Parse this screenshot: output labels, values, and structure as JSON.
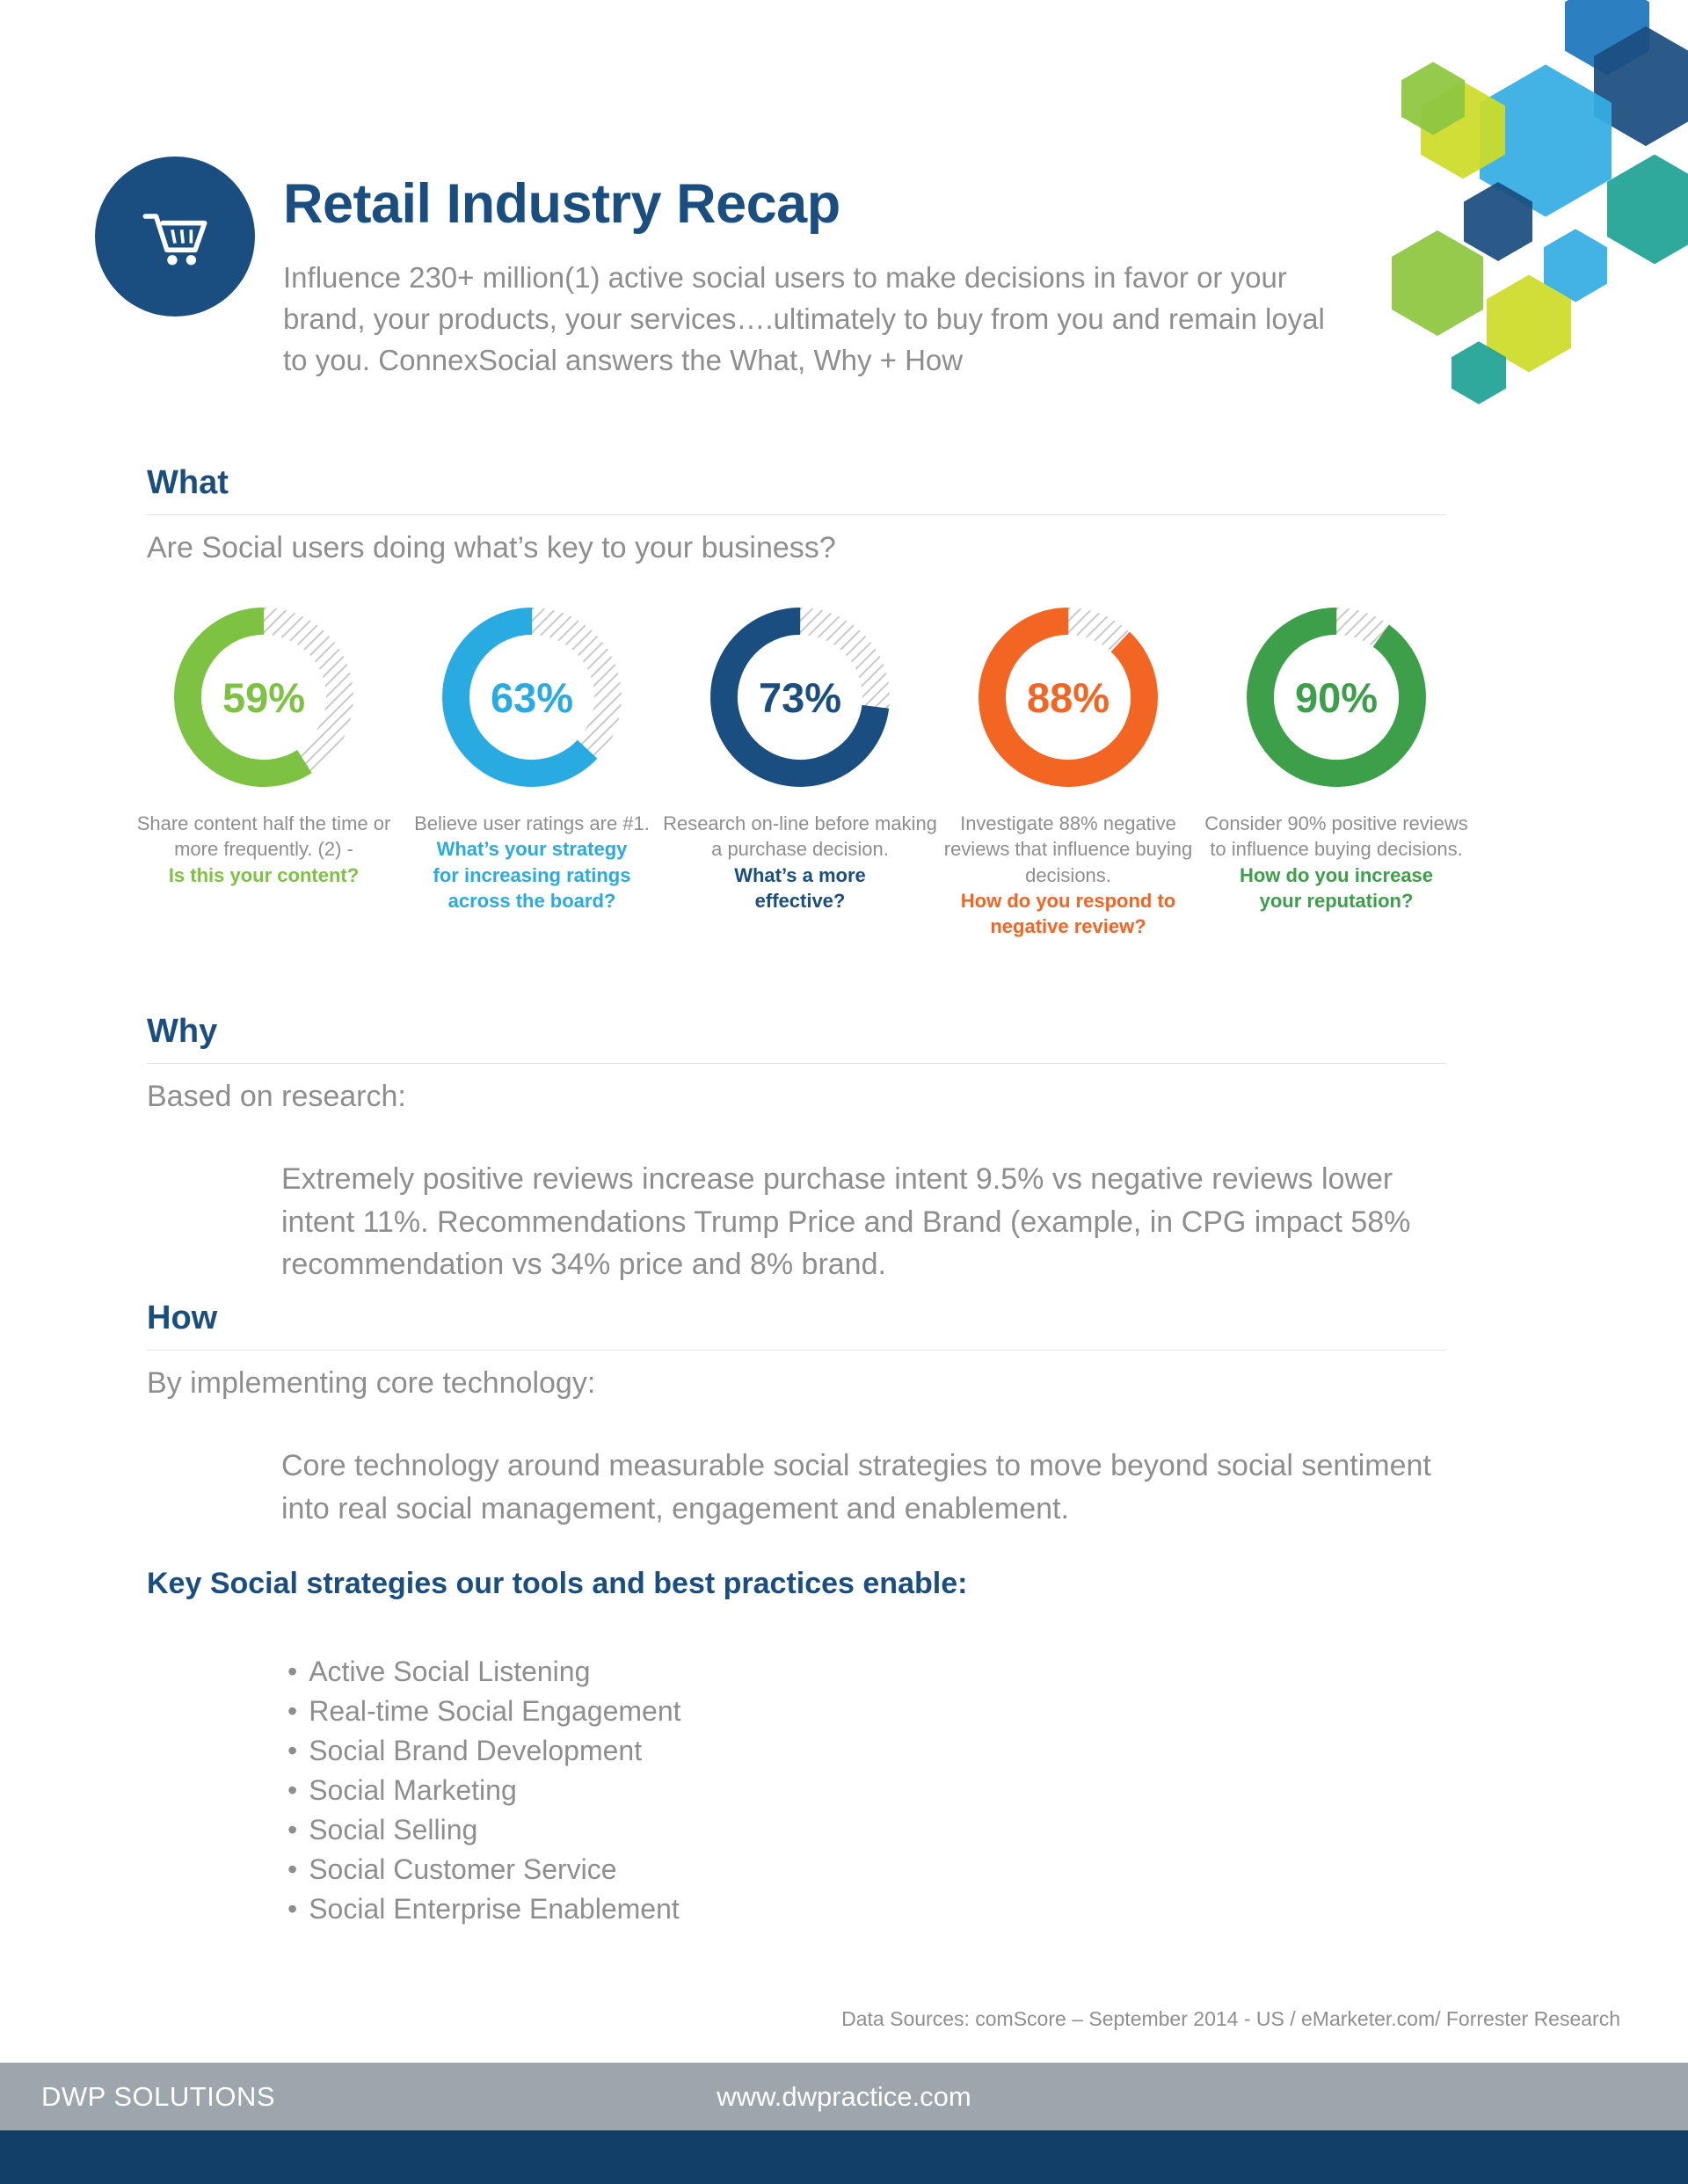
{
  "colors": {
    "navy": "#1B4E80",
    "gray": "#8E8E8E",
    "rule": "#E3E3E3",
    "footer_bar": "#9DA6AC",
    "footer_strip": "#123F68"
  },
  "decoration_palette": {
    "light_blue": "#35ADE3",
    "med_blue": "#1C75BC",
    "navy": "#1B4E80",
    "teal": "#1FA293",
    "green": "#8DC63F",
    "yellow_green": "#CDDC29"
  },
  "header": {
    "title": "Retail Industry Recap",
    "subtitle": "Influence 230+ million(1) active social users to make decisions in favor or your brand,  your products, your services….ultimately to buy from you and remain loyal to you. ConnexSocial answers the What, Why + How"
  },
  "what": {
    "heading": "What",
    "question": "Are Social users doing what’s key to your business?"
  },
  "chart_data": {
    "type": "donut",
    "title": "Are Social users doing what’s key to your business?",
    "values": [
      59,
      63,
      73,
      88,
      90
    ],
    "unit": "%",
    "labels": [
      "Share content half the time or more frequently",
      "Believe user ratings are #1",
      "Research on-line before making a purchase decision",
      "Investigate 88% negative reviews that influence buying decisions",
      "Consider 90% positive reviews to influence buying decisions"
    ]
  },
  "donuts": [
    {
      "percent": 59,
      "color": "#7DC242",
      "caption": "Share content half the time or more frequently. (2) -",
      "question": "Is this your content?"
    },
    {
      "percent": 63,
      "color": "#29ABE2",
      "caption": "Believe user ratings are #1.",
      "question": "What’s your strategy for increasing ratings across the board?"
    },
    {
      "percent": 73,
      "color": "#1B4E80",
      "caption": "Research on-line before making a purchase decision.",
      "question": "What’s a more effective?"
    },
    {
      "percent": 88,
      "color": "#F26522",
      "caption": "Investigate 88% negative reviews that influence buying  decisions.",
      "question": "How do you respond to negative review?"
    },
    {
      "percent": 90,
      "color": "#3D9F4A",
      "caption": "Consider 90% positive reviews to influence buying  decisions.",
      "question": "How do you increase your reputation?"
    }
  ],
  "why": {
    "heading": "Why",
    "lead": "Based on research:",
    "body": "Extremely positive reviews increase purchase intent 9.5% vs negative reviews lower intent 11%. Recommendations Trump Price and Brand (example, in CPG impact 58% recommendation vs 34% price and 8% brand."
  },
  "how": {
    "heading": "How",
    "lead": "By implementing core technology:",
    "body": "Core technology around measurable social strategies to move beyond social sentiment into real social management, engagement and enablement."
  },
  "strategies": {
    "heading": "Key Social strategies our tools and best practices enable:",
    "items": [
      "Active Social Listening",
      "Real-time Social Engagement",
      "Social Brand Development",
      "Social Marketing",
      "Social Selling",
      "Social Customer Service",
      "Social Enterprise Enablement"
    ]
  },
  "footer": {
    "data_sources": "Data Sources: comScore – September 2014 - US / eMarketer.com/ Forrester Research",
    "company": "DWP SOLUTIONS",
    "website": "www.dwpractice.com"
  }
}
